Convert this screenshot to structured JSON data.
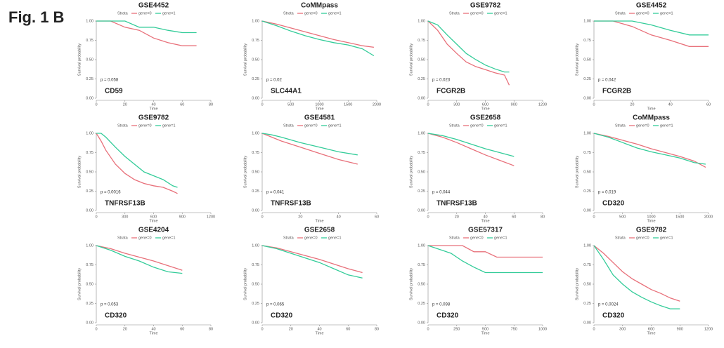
{
  "figure_label": "Fig. 1 B",
  "chart_data": [
    {
      "type": "line",
      "title": "GSE4452",
      "annotation": "CD59",
      "p_value": "p = 0.058",
      "legend_title": "Strata",
      "xlabel": "Time",
      "ylabel": "Survival probability",
      "x": [
        0,
        10,
        20,
        30,
        40,
        50,
        60,
        70
      ],
      "series": [
        {
          "name": "gene=0",
          "color": "#e8707a",
          "values": [
            1,
            1,
            0.92,
            0.88,
            0.78,
            0.72,
            0.68,
            0.68
          ]
        },
        {
          "name": "gene=1",
          "color": "#33cc99",
          "values": [
            1,
            1,
            1,
            0.92,
            0.92,
            0.88,
            0.85,
            0.85
          ]
        }
      ],
      "xlim": [
        0,
        80
      ],
      "xticks": [
        0,
        20,
        40,
        60,
        80
      ],
      "ylim": [
        0,
        1
      ],
      "yticks": [
        {
          "value": 0,
          "label": "0.00"
        },
        {
          "value": 0.25,
          "label": "0.25"
        },
        {
          "value": 0.5,
          "label": "0.50"
        },
        {
          "value": 0.75,
          "label": "0.75"
        },
        {
          "value": 1,
          "label": "1.00"
        }
      ]
    },
    {
      "type": "line",
      "title": "CoMMpass",
      "annotation": "SLC44A1",
      "p_value": "p = 0.02",
      "legend_title": "Strata",
      "xlabel": "Time",
      "ylabel": "Survival probability",
      "x": [
        0,
        250,
        500,
        750,
        1000,
        1250,
        1500,
        1750,
        1950
      ],
      "series": [
        {
          "name": "gene=0",
          "color": "#e8707a",
          "values": [
            1,
            0.96,
            0.91,
            0.86,
            0.81,
            0.76,
            0.72,
            0.68,
            0.66
          ]
        },
        {
          "name": "gene=1",
          "color": "#33cc99",
          "values": [
            1,
            0.94,
            0.87,
            0.81,
            0.76,
            0.72,
            0.69,
            0.64,
            0.55
          ]
        }
      ],
      "xlim": [
        0,
        2000
      ],
      "xticks": [
        0,
        500,
        1000,
        1500,
        2000
      ],
      "ylim": [
        0,
        1
      ],
      "yticks": [
        {
          "value": 0,
          "label": "0.00"
        },
        {
          "value": 0.25,
          "label": "0.25"
        },
        {
          "value": 0.5,
          "label": "0.50"
        },
        {
          "value": 0.75,
          "label": "0.75"
        },
        {
          "value": 1,
          "label": "1.00"
        }
      ]
    },
    {
      "type": "line",
      "title": "GSE9782",
      "annotation": "FCGR2B",
      "p_value": "p = 0.023",
      "legend_title": "Strata",
      "xlabel": "Time",
      "ylabel": "Survival probability",
      "x": [
        0,
        100,
        200,
        300,
        400,
        500,
        600,
        700,
        800,
        850
      ],
      "series": [
        {
          "name": "gene=0",
          "color": "#e8707a",
          "values": [
            1,
            0.88,
            0.7,
            0.58,
            0.47,
            0.41,
            0.37,
            0.33,
            0.3,
            0.17
          ]
        },
        {
          "name": "gene=1",
          "color": "#33cc99",
          "values": [
            1,
            0.95,
            0.82,
            0.7,
            0.58,
            0.5,
            0.43,
            0.38,
            0.34,
            0.34
          ]
        }
      ],
      "xlim": [
        0,
        1200
      ],
      "xticks": [
        0,
        300,
        600,
        900,
        1200
      ],
      "ylim": [
        0,
        1
      ],
      "yticks": [
        {
          "value": 0,
          "label": "0.00"
        },
        {
          "value": 0.25,
          "label": "0.25"
        },
        {
          "value": 0.5,
          "label": "0.50"
        },
        {
          "value": 0.75,
          "label": "0.75"
        },
        {
          "value": 1,
          "label": "1.00"
        }
      ]
    },
    {
      "type": "line",
      "title": "GSE4452",
      "annotation": "FCGR2B",
      "p_value": "p = 0.042",
      "legend_title": "Strata",
      "xlabel": "Time",
      "ylabel": "Survival probability",
      "x": [
        0,
        10,
        20,
        30,
        40,
        50,
        60
      ],
      "series": [
        {
          "name": "gene=0",
          "color": "#e8707a",
          "values": [
            1,
            1,
            0.93,
            0.82,
            0.75,
            0.67,
            0.67
          ]
        },
        {
          "name": "gene=1",
          "color": "#33cc99",
          "values": [
            1,
            1,
            1,
            0.95,
            0.88,
            0.82,
            0.82
          ]
        }
      ],
      "xlim": [
        0,
        60
      ],
      "xticks": [
        0,
        20,
        40,
        60
      ],
      "ylim": [
        0,
        1
      ],
      "yticks": [
        {
          "value": 0,
          "label": "0.00"
        },
        {
          "value": 0.25,
          "label": "0.25"
        },
        {
          "value": 0.5,
          "label": "0.50"
        },
        {
          "value": 0.75,
          "label": "0.75"
        },
        {
          "value": 1,
          "label": "1.00"
        }
      ]
    },
    {
      "type": "line",
      "title": "GSE9782",
      "annotation": "TNFRSF13B",
      "p_value": "p = 0.0016",
      "legend_title": "Strata",
      "xlabel": "Time",
      "ylabel": "Survival probability",
      "x": [
        0,
        50,
        100,
        200,
        300,
        400,
        500,
        600,
        700,
        800,
        850
      ],
      "series": [
        {
          "name": "gene=0",
          "color": "#e8707a",
          "values": [
            1,
            0.9,
            0.78,
            0.6,
            0.48,
            0.4,
            0.35,
            0.32,
            0.3,
            0.25,
            0.22
          ]
        },
        {
          "name": "gene=1",
          "color": "#33cc99",
          "values": [
            1,
            1,
            0.95,
            0.82,
            0.7,
            0.6,
            0.5,
            0.45,
            0.4,
            0.32,
            0.3
          ]
        }
      ],
      "xlim": [
        0,
        1200
      ],
      "xticks": [
        0,
        300,
        600,
        900,
        1200
      ],
      "ylim": [
        0,
        1
      ],
      "yticks": [
        {
          "value": 0,
          "label": "0.00"
        },
        {
          "value": 0.25,
          "label": "0.25"
        },
        {
          "value": 0.5,
          "label": "0.50"
        },
        {
          "value": 0.75,
          "label": "0.75"
        },
        {
          "value": 1,
          "label": "1.00"
        }
      ]
    },
    {
      "type": "line",
      "title": "GSE4581",
      "annotation": "TNFRSF13B",
      "p_value": "p = 0.041",
      "legend_title": "Strata",
      "xlabel": "Time",
      "ylabel": "Survival probability",
      "x": [
        0,
        5,
        10,
        20,
        30,
        40,
        50
      ],
      "series": [
        {
          "name": "gene=0",
          "color": "#e8707a",
          "values": [
            1,
            0.95,
            0.9,
            0.82,
            0.74,
            0.66,
            0.6
          ]
        },
        {
          "name": "gene=1",
          "color": "#33cc99",
          "values": [
            1,
            0.98,
            0.95,
            0.88,
            0.82,
            0.76,
            0.72
          ]
        }
      ],
      "xlim": [
        0,
        60
      ],
      "xticks": [
        0,
        20,
        40,
        60
      ],
      "ylim": [
        0,
        1
      ],
      "yticks": [
        {
          "value": 0,
          "label": "0.00"
        },
        {
          "value": 0.25,
          "label": "0.25"
        },
        {
          "value": 0.5,
          "label": "0.50"
        },
        {
          "value": 0.75,
          "label": "0.75"
        },
        {
          "value": 1,
          "label": "1.00"
        }
      ]
    },
    {
      "type": "line",
      "title": "GSE2658",
      "annotation": "TNFRSF13B",
      "p_value": "p = 0.044",
      "legend_title": "Strata",
      "xlabel": "Time",
      "ylabel": "Survival probability",
      "x": [
        0,
        10,
        20,
        30,
        40,
        50,
        60
      ],
      "series": [
        {
          "name": "gene=0",
          "color": "#e8707a",
          "values": [
            1,
            0.95,
            0.88,
            0.8,
            0.72,
            0.65,
            0.58
          ]
        },
        {
          "name": "gene=1",
          "color": "#33cc99",
          "values": [
            1,
            0.97,
            0.92,
            0.86,
            0.8,
            0.75,
            0.7
          ]
        }
      ],
      "xlim": [
        0,
        80
      ],
      "xticks": [
        0,
        20,
        40,
        60,
        80
      ],
      "ylim": [
        0,
        1
      ],
      "yticks": [
        {
          "value": 0,
          "label": "0.00"
        },
        {
          "value": 0.25,
          "label": "0.25"
        },
        {
          "value": 0.5,
          "label": "0.50"
        },
        {
          "value": 0.75,
          "label": "0.75"
        },
        {
          "value": 1,
          "label": "1.00"
        }
      ]
    },
    {
      "type": "line",
      "title": "CoMMpass",
      "annotation": "CD320",
      "p_value": "p = 0.019",
      "legend_title": "Strata",
      "xlabel": "Time",
      "ylabel": "Survival probability",
      "x": [
        0,
        250,
        500,
        750,
        1000,
        1250,
        1500,
        1750,
        1950
      ],
      "series": [
        {
          "name": "gene=0",
          "color": "#e8707a",
          "values": [
            1,
            0.96,
            0.91,
            0.86,
            0.8,
            0.75,
            0.7,
            0.64,
            0.56
          ]
        },
        {
          "name": "gene=1",
          "color": "#33cc99",
          "values": [
            1,
            0.95,
            0.88,
            0.81,
            0.76,
            0.72,
            0.68,
            0.62,
            0.6
          ]
        }
      ],
      "xlim": [
        0,
        2000
      ],
      "xticks": [
        0,
        500,
        1000,
        1500,
        2000
      ],
      "ylim": [
        0,
        1
      ],
      "yticks": [
        {
          "value": 0,
          "label": "0.00"
        },
        {
          "value": 0.25,
          "label": "0.25"
        },
        {
          "value": 0.5,
          "label": "0.50"
        },
        {
          "value": 0.75,
          "label": "0.75"
        },
        {
          "value": 1,
          "label": "1.00"
        }
      ]
    },
    {
      "type": "line",
      "title": "GSE4204",
      "annotation": "CD320",
      "p_value": "p = 0.053",
      "legend_title": "Strata",
      "xlabel": "Time",
      "ylabel": "Survival probability",
      "x": [
        0,
        10,
        20,
        30,
        40,
        50,
        60
      ],
      "series": [
        {
          "name": "gene=0",
          "color": "#e8707a",
          "values": [
            1,
            0.96,
            0.9,
            0.85,
            0.8,
            0.74,
            0.68
          ]
        },
        {
          "name": "gene=1",
          "color": "#33cc99",
          "values": [
            1,
            0.94,
            0.86,
            0.8,
            0.72,
            0.66,
            0.64
          ]
        }
      ],
      "xlim": [
        0,
        80
      ],
      "xticks": [
        0,
        20,
        40,
        60,
        80
      ],
      "ylim": [
        0,
        1
      ],
      "yticks": [
        {
          "value": 0,
          "label": "0.00"
        },
        {
          "value": 0.25,
          "label": "0.25"
        },
        {
          "value": 0.5,
          "label": "0.50"
        },
        {
          "value": 0.75,
          "label": "0.75"
        },
        {
          "value": 1,
          "label": "1.00"
        }
      ]
    },
    {
      "type": "line",
      "title": "GSE2658",
      "annotation": "CD320",
      "p_value": "p = 0.065",
      "legend_title": "Strata",
      "xlabel": "Time",
      "ylabel": "Survival probability",
      "x": [
        0,
        10,
        20,
        30,
        40,
        50,
        60,
        70
      ],
      "series": [
        {
          "name": "gene=0",
          "color": "#e8707a",
          "values": [
            1,
            0.97,
            0.92,
            0.87,
            0.82,
            0.76,
            0.7,
            0.65
          ]
        },
        {
          "name": "gene=1",
          "color": "#33cc99",
          "values": [
            1,
            0.96,
            0.9,
            0.84,
            0.78,
            0.7,
            0.62,
            0.58
          ]
        }
      ],
      "xlim": [
        0,
        80
      ],
      "xticks": [
        0,
        20,
        40,
        60,
        80
      ],
      "ylim": [
        0,
        1
      ],
      "yticks": [
        {
          "value": 0,
          "label": "0.00"
        },
        {
          "value": 0.25,
          "label": "0.25"
        },
        {
          "value": 0.5,
          "label": "0.50"
        },
        {
          "value": 0.75,
          "label": "0.75"
        },
        {
          "value": 1,
          "label": "1.00"
        }
      ]
    },
    {
      "type": "line",
      "title": "GSE57317",
      "annotation": "CD320",
      "p_value": "p = 0.098",
      "legend_title": "Strata",
      "xlabel": "Time",
      "ylabel": "Survival probability",
      "x": [
        0,
        200,
        300,
        400,
        500,
        600,
        1000
      ],
      "series": [
        {
          "name": "gene=0",
          "color": "#e8707a",
          "values": [
            1,
            1,
            1,
            0.92,
            0.92,
            0.85,
            0.85
          ]
        },
        {
          "name": "gene=1",
          "color": "#33cc99",
          "values": [
            1,
            0.9,
            0.8,
            0.72,
            0.65,
            0.65,
            0.65
          ]
        }
      ],
      "xlim": [
        0,
        1000
      ],
      "xticks": [
        0,
        250,
        500,
        750,
        1000
      ],
      "ylim": [
        0,
        1
      ],
      "yticks": [
        {
          "value": 0,
          "label": "0.00"
        },
        {
          "value": 0.25,
          "label": "0.25"
        },
        {
          "value": 0.5,
          "label": "0.50"
        },
        {
          "value": 0.75,
          "label": "0.75"
        },
        {
          "value": 1,
          "label": "1.00"
        }
      ]
    },
    {
      "type": "line",
      "title": "GSE9782",
      "annotation": "CD320",
      "p_value": "p = 0.0024",
      "legend_title": "Strata",
      "xlabel": "Time",
      "ylabel": "Survival probability",
      "x": [
        0,
        100,
        200,
        300,
        400,
        500,
        600,
        700,
        800,
        900
      ],
      "series": [
        {
          "name": "gene=0",
          "color": "#e8707a",
          "values": [
            1,
            0.9,
            0.78,
            0.66,
            0.57,
            0.5,
            0.43,
            0.38,
            0.32,
            0.28
          ]
        },
        {
          "name": "gene=1",
          "color": "#33cc99",
          "values": [
            1,
            0.82,
            0.62,
            0.5,
            0.4,
            0.33,
            0.27,
            0.22,
            0.18,
            0.18
          ]
        }
      ],
      "xlim": [
        0,
        1200
      ],
      "xticks": [
        0,
        300,
        600,
        900,
        1200
      ],
      "ylim": [
        0,
        1
      ],
      "yticks": [
        {
          "value": 0,
          "label": "0.00"
        },
        {
          "value": 0.25,
          "label": "0.25"
        },
        {
          "value": 0.5,
          "label": "0.50"
        },
        {
          "value": 0.75,
          "label": "0.75"
        },
        {
          "value": 1,
          "label": "1.00"
        }
      ]
    }
  ]
}
